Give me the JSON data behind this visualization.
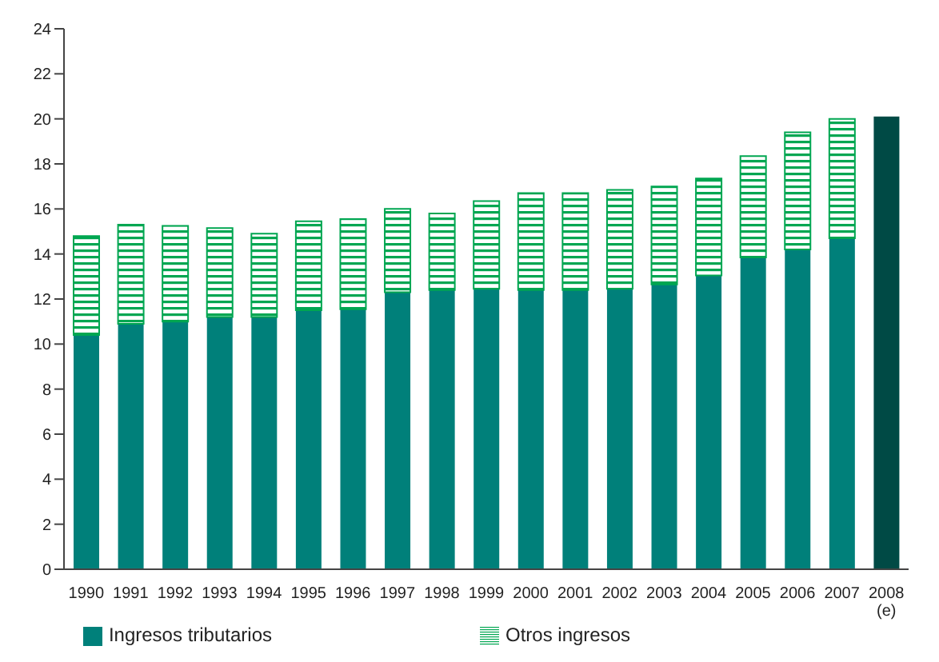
{
  "chart_data": {
    "type": "bar",
    "stacked": true,
    "categories": [
      "1990",
      "1991",
      "1992",
      "1993",
      "1994",
      "1995",
      "1996",
      "1997",
      "1998",
      "1999",
      "2000",
      "2001",
      "2002",
      "2003",
      "2004",
      "2005",
      "2006",
      "2007",
      "2008 (e)"
    ],
    "series": [
      {
        "name": "Ingresos tributarios",
        "color": "#00807a",
        "colors": [
          "#00807a",
          "#00807a",
          "#00807a",
          "#00807a",
          "#00807a",
          "#00807a",
          "#00807a",
          "#00807a",
          "#00807a",
          "#00807a",
          "#00807a",
          "#00807a",
          "#00807a",
          "#00807a",
          "#00807a",
          "#00807a",
          "#00807a",
          "#00807a",
          "#004a45"
        ],
        "values": [
          10.4,
          10.9,
          11.0,
          11.2,
          11.2,
          11.5,
          11.55,
          12.3,
          12.4,
          12.45,
          12.4,
          12.4,
          12.45,
          12.65,
          13.05,
          13.85,
          14.2,
          14.7,
          20.1
        ]
      },
      {
        "name": "Otros ingresos",
        "color": "#00a651",
        "values": [
          4.4,
          4.4,
          4.25,
          3.95,
          3.7,
          3.95,
          4.0,
          3.7,
          3.4,
          3.9,
          4.3,
          4.3,
          4.4,
          4.35,
          4.3,
          4.5,
          5.2,
          5.3,
          null
        ]
      }
    ],
    "ylim": [
      0,
      24
    ],
    "yticks": [
      0,
      2,
      4,
      6,
      8,
      10,
      12,
      14,
      16,
      18,
      20,
      22,
      24
    ],
    "grid": false,
    "legend": "bottom"
  }
}
